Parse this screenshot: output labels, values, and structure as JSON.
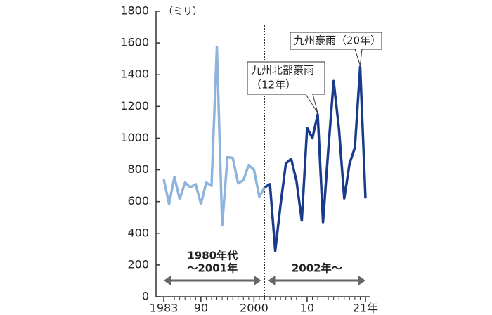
{
  "chart_data": {
    "type": "line",
    "y_unit": "（ミリ）",
    "xlim": [
      1983,
      2021
    ],
    "xticks": [
      1983,
      {
        "value": 1990,
        "label": "90"
      },
      2000,
      {
        "value": 2010,
        "label": "10"
      },
      {
        "value": 2021,
        "label": "21年"
      }
    ],
    "ylim": [
      0,
      1800
    ],
    "yticks": [
      0,
      200,
      400,
      600,
      800,
      1000,
      1200,
      1400,
      1600,
      1800
    ],
    "grid": false,
    "series": [
      {
        "color": "#8fb4dc",
        "x": [
          1983,
          1984,
          1985,
          1986,
          1987,
          1988,
          1989,
          1990,
          1991,
          1992,
          1993,
          1994,
          1995,
          1996,
          1997,
          1998,
          1999,
          2000,
          2001,
          2002
        ],
        "values": [
          740,
          585,
          755,
          615,
          720,
          690,
          710,
          585,
          720,
          700,
          1575,
          450,
          880,
          875,
          715,
          735,
          830,
          800,
          630,
          690
        ]
      },
      {
        "color": "#1a3a8c",
        "x": [
          2002,
          2003,
          2004,
          2005,
          2006,
          2007,
          2008,
          2009,
          2010,
          2011,
          2012,
          2013,
          2014,
          2015,
          2016,
          2017,
          2018,
          2019,
          2020,
          2021
        ],
        "values": [
          690,
          710,
          290,
          580,
          840,
          870,
          730,
          480,
          1065,
          1000,
          1150,
          470,
          930,
          1360,
          1060,
          620,
          840,
          940,
          1450,
          620
        ]
      }
    ],
    "divider_x": 2002,
    "periods": [
      {
        "lines": [
          "1980年代",
          "〜2001年"
        ],
        "from": 1983,
        "to": 2002
      },
      {
        "lines": [
          "2002年〜"
        ],
        "from": 2002,
        "to": 2021
      }
    ],
    "callouts": [
      {
        "lines": [
          "九州北部豪雨",
          "（12年）"
        ],
        "x": 2012,
        "y": 1150
      },
      {
        "lines": [
          "九州豪雨（20年）"
        ],
        "x": 2020,
        "y": 1450
      }
    ]
  }
}
